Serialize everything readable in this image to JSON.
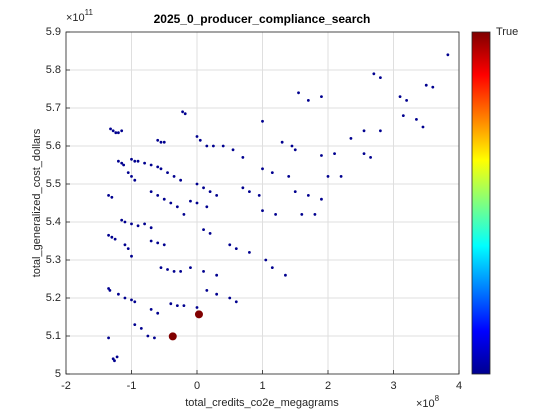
{
  "chart_data": {
    "type": "scatter",
    "title": "2025_0_producer_compliance_search",
    "xlabel": "total_credits_co2e_megagrams",
    "ylabel": "total_generalized_cost_dollars",
    "x_multiplier": {
      "base": "×10",
      "exponent": "8"
    },
    "y_multiplier": {
      "base": "×10",
      "exponent": "11"
    },
    "xlim": [
      -2,
      4
    ],
    "xticks": [
      -2,
      -1,
      0,
      1,
      2,
      3,
      4
    ],
    "ylim": [
      5,
      5.9
    ],
    "yticks": [
      5,
      5.1,
      5.2,
      5.3,
      5.4,
      5.5,
      5.6,
      5.7,
      5.8,
      5.9
    ],
    "grid": true,
    "colorbar": {
      "label": "True",
      "colormap": "jet"
    },
    "series": [
      {
        "color": "#00008f",
        "marker_size": 1.4,
        "x": [
          -1.32,
          -1.28,
          -1.24,
          -1.2,
          -1.15,
          -1.2,
          -1.15,
          -1.12,
          -1.35,
          -1.3,
          -1.35,
          -1.3,
          -1.25,
          -1.35,
          -1.33,
          -1.35,
          -1.28,
          -1.22,
          -1.26,
          -1.2,
          -1.1,
          -1.0,
          -0.95,
          -1.0,
          -0.95,
          -0.9,
          -0.8,
          -0.7,
          -0.6,
          -0.6,
          -0.55,
          -0.5,
          -1.05,
          -1.0,
          -0.95,
          -1.15,
          -1.1,
          -1.0,
          -0.9,
          -0.8,
          -0.7,
          -1.1,
          -1.05,
          -1.0,
          -0.7,
          -0.6,
          -0.5,
          -0.55,
          -0.45,
          -0.35,
          -0.25,
          -0.7,
          -0.6,
          -0.5,
          -0.55,
          -0.45,
          -0.35,
          -0.25,
          -0.4,
          -0.3,
          -0.2,
          -0.22,
          -0.18,
          0.0,
          0.05,
          0.15,
          0.25,
          0.0,
          0.1,
          0.2,
          0.3,
          -0.1,
          0.0,
          0.15,
          0.1,
          0.2,
          0.5,
          0.6,
          0.8,
          -0.1,
          0.1,
          0.3,
          -0.4,
          -0.3,
          -0.2,
          0.0,
          0.15,
          0.3,
          0.5,
          0.6,
          -0.95,
          -0.85,
          -0.75,
          -0.65,
          -0.7,
          -0.6,
          0.4,
          0.55,
          0.7,
          0.7,
          0.8,
          0.95,
          1.0,
          1.0,
          1.15,
          1.4,
          1.0,
          1.2,
          1.05,
          1.15,
          1.35,
          1.3,
          1.45,
          1.5,
          1.55,
          1.9,
          1.7,
          1.5,
          1.7,
          1.9,
          2.0,
          2.2,
          2.35,
          2.55,
          2.8,
          2.55,
          2.65,
          2.7,
          2.8,
          3.1,
          3.2,
          3.15,
          3.35,
          3.5,
          3.6,
          3.83,
          3.45,
          1.6,
          1.8,
          1.9,
          2.1
        ],
        "values": [
          5.645,
          5.64,
          5.635,
          5.635,
          5.64,
          5.56,
          5.555,
          5.55,
          5.47,
          5.465,
          5.365,
          5.36,
          5.355,
          5.225,
          5.22,
          5.095,
          5.04,
          5.045,
          5.035,
          5.21,
          5.2,
          5.195,
          5.19,
          5.565,
          5.56,
          5.56,
          5.555,
          5.55,
          5.545,
          5.615,
          5.61,
          5.61,
          5.53,
          5.52,
          5.51,
          5.405,
          5.4,
          5.395,
          5.39,
          5.395,
          5.385,
          5.34,
          5.33,
          5.31,
          5.35,
          5.345,
          5.34,
          5.28,
          5.275,
          5.27,
          5.27,
          5.48,
          5.47,
          5.46,
          5.54,
          5.53,
          5.52,
          5.51,
          5.45,
          5.44,
          5.42,
          5.69,
          5.685,
          5.625,
          5.615,
          5.6,
          5.6,
          5.5,
          5.49,
          5.48,
          5.47,
          5.455,
          5.45,
          5.44,
          5.38,
          5.37,
          5.34,
          5.33,
          5.32,
          5.28,
          5.27,
          5.26,
          5.185,
          5.18,
          5.18,
          5.175,
          5.22,
          5.21,
          5.2,
          5.19,
          5.13,
          5.12,
          5.1,
          5.095,
          5.17,
          5.16,
          5.6,
          5.59,
          5.57,
          5.49,
          5.48,
          5.47,
          5.665,
          5.54,
          5.53,
          5.52,
          5.43,
          5.42,
          5.3,
          5.28,
          5.26,
          5.61,
          5.6,
          5.59,
          5.74,
          5.73,
          5.72,
          5.48,
          5.47,
          5.46,
          5.52,
          5.52,
          5.62,
          5.64,
          5.64,
          5.58,
          5.57,
          5.79,
          5.78,
          5.73,
          5.72,
          5.68,
          5.67,
          5.76,
          5.755,
          5.84,
          5.65,
          5.42,
          5.42,
          5.575,
          5.58
        ]
      },
      {
        "color": "#800000",
        "marker_size": 4,
        "x": [
          0.03,
          -0.37
        ],
        "values": [
          5.157,
          5.099
        ]
      }
    ]
  }
}
